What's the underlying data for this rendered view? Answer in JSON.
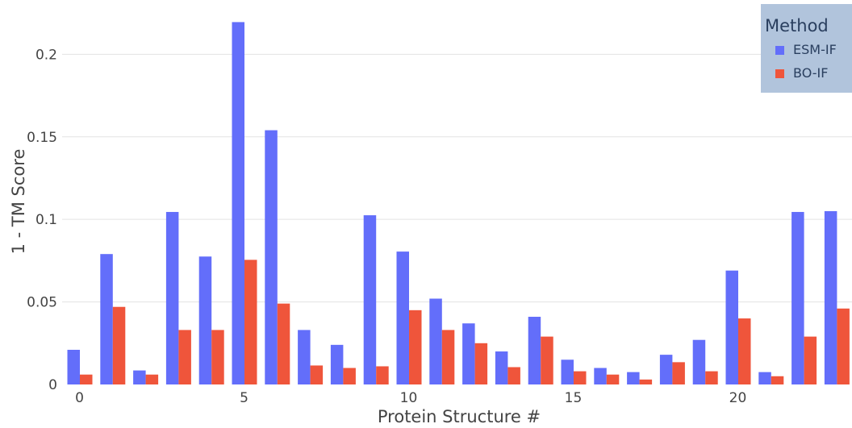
{
  "chart_data": {
    "type": "bar",
    "xlabel": "Protein Structure #",
    "ylabel": "1 - TM Score",
    "ylim": [
      0,
      0.228
    ],
    "x_ticks": [
      "0",
      "5",
      "10",
      "15",
      "20"
    ],
    "y_ticks": [
      "0",
      "0.05",
      "0.1",
      "0.15",
      "0.2"
    ],
    "grid": true,
    "legend": {
      "title": "Method",
      "placement": "top-right"
    },
    "categories": [
      "0",
      "1",
      "2",
      "3",
      "4",
      "5",
      "6",
      "7",
      "8",
      "9",
      "10",
      "11",
      "12",
      "13",
      "14",
      "15",
      "16",
      "17",
      "18",
      "19",
      "20",
      "21",
      "22",
      "23"
    ],
    "series": [
      {
        "name": "ESM-IF",
        "color": "#636efa",
        "values": [
          0.021,
          0.079,
          0.0085,
          0.1045,
          0.0775,
          0.2195,
          0.154,
          0.033,
          0.024,
          0.1025,
          0.0805,
          0.052,
          0.037,
          0.02,
          0.041,
          0.015,
          0.01,
          0.0075,
          0.018,
          0.027,
          0.069,
          0.0075,
          0.1045,
          0.105
        ]
      },
      {
        "name": "BO-IF",
        "color": "#ef553b",
        "values": [
          0.006,
          0.047,
          0.006,
          0.033,
          0.033,
          0.0755,
          0.049,
          0.0115,
          0.01,
          0.011,
          0.045,
          0.033,
          0.025,
          0.0105,
          0.029,
          0.008,
          0.006,
          0.003,
          0.0135,
          0.008,
          0.04,
          0.005,
          0.029,
          0.046
        ]
      }
    ]
  }
}
